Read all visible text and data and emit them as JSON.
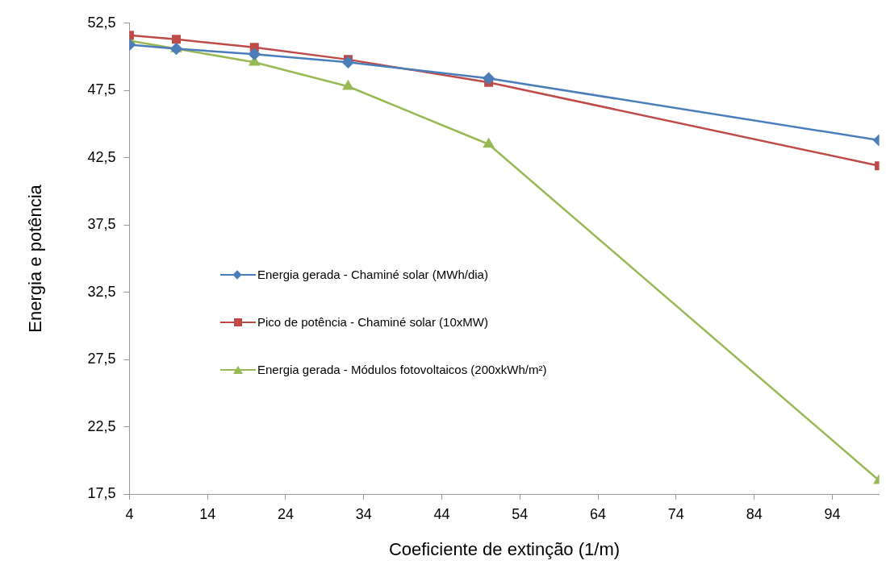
{
  "chart_data": {
    "type": "line",
    "xlabel": "Coeficiente de extinção (1/m)",
    "ylabel": "Energia e potência",
    "x": [
      4,
      10,
      20,
      32,
      50,
      100
    ],
    "xlim": [
      4,
      100
    ],
    "xticks": [
      4,
      14,
      24,
      34,
      44,
      54,
      64,
      74,
      84,
      94
    ],
    "ylim": [
      17.5,
      52.5
    ],
    "yticks": [
      {
        "value": 17.5,
        "label": "17,5"
      },
      {
        "value": 22.5,
        "label": "22,5"
      },
      {
        "value": 27.5,
        "label": "27,5"
      },
      {
        "value": 32.5,
        "label": "32,5"
      },
      {
        "value": 37.5,
        "label": "37,5"
      },
      {
        "value": 42.5,
        "label": "42,5"
      },
      {
        "value": 47.5,
        "label": "47,5"
      },
      {
        "value": 52.5,
        "label": "52,5"
      }
    ],
    "grid": false,
    "legend": "left",
    "series": [
      {
        "name": "Energia gerada - Chaminé solar (MWh/dia)",
        "color": "#4a7ebb",
        "marker": "diamond",
        "values": [
          50.9,
          50.6,
          50.2,
          49.6,
          48.4,
          43.8
        ]
      },
      {
        "name": "Pico de potência - Chaminé solar (10xMW)",
        "color": "#be4b48",
        "marker": "square",
        "values": [
          51.6,
          51.3,
          50.7,
          49.8,
          48.1,
          41.9
        ]
      },
      {
        "name": "Energia gerada - Módulos fotovoltaicos (200xkWh/m²)",
        "color": "#98b954",
        "marker": "triangle",
        "values": [
          51.2,
          50.6,
          49.6,
          47.8,
          43.5,
          18.5
        ]
      }
    ]
  }
}
